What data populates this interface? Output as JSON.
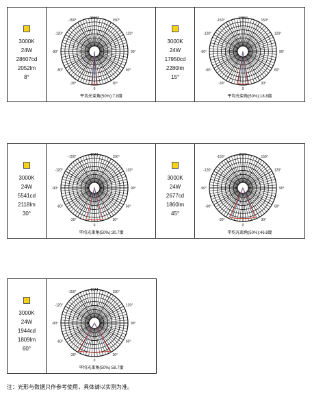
{
  "colors": {
    "swatch": "#f7d117",
    "beam": "#c0392b",
    "beam_inner": "#2b6cb0",
    "grid": "#111111"
  },
  "cards": [
    {
      "cct": "3000K",
      "power": "24W",
      "intensity": "28607cd",
      "flux": "2052lm",
      "angle": "8°",
      "peak_label": "28607",
      "caption": "平均光束角(50%):7.8度",
      "beam_half_deg": 4
    },
    {
      "cct": "3000K",
      "power": "24W",
      "intensity": "17950cd",
      "flux": "2280lm",
      "angle": "15°",
      "peak_label": "17950",
      "caption": "平均光束角(50%):18.8度",
      "beam_half_deg": 9
    },
    {
      "cct": "3000K",
      "power": "24W",
      "intensity": "5541cd",
      "flux": "2118lm",
      "angle": "30°",
      "peak_label": "5541",
      "caption": "平均光束角(50%):30.7度",
      "beam_half_deg": 15
    },
    {
      "cct": "3000K",
      "power": "24W",
      "intensity": "2677cd",
      "flux": "1860lm",
      "angle": "45°",
      "peak_label": "2677",
      "caption": "平均光束角(50%):46.8度",
      "beam_half_deg": 23
    },
    {
      "cct": "3000K",
      "power": "24W",
      "intensity": "1944cd",
      "flux": "1809lm",
      "angle": "60°",
      "peak_label": "1944",
      "caption": "平均光束角(50%):58.7度",
      "beam_half_deg": 29
    }
  ],
  "angle_labels": [
    "-150°",
    "150°",
    "-120°",
    "120°",
    "-90°",
    "90°",
    "-60°",
    "60°",
    "-30°",
    "30°",
    "0"
  ],
  "note": "注：光形与数据只作参考使用，具体请以实测为准。"
}
